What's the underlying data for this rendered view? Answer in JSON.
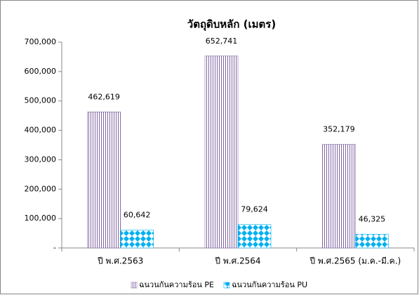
{
  "chart_data": {
    "type": "bar",
    "title": "วัตถุดิบหลัก (เมตร)",
    "categories": [
      "ปี พ.ศ.2563",
      "ปี พ.ศ.2564",
      "ปี พ.ศ.2565 (ม.ค.-มี.ค.)"
    ],
    "series": [
      {
        "name": "ฉนวนกันความร้อน PE",
        "color": "#8064a2",
        "values": [
          462619,
          652741,
          352179
        ],
        "value_labels": [
          "462,619",
          "652,741",
          "352,179"
        ]
      },
      {
        "name": "ฉนวนกันความร้อน PU",
        "color": "#00b0f0",
        "values": [
          60642,
          79624,
          46325
        ],
        "value_labels": [
          "60,642",
          "79,624",
          "46,325"
        ]
      }
    ],
    "ylim": [
      0,
      700000
    ],
    "yticks": [
      {
        "value": 0,
        "label": "-"
      },
      {
        "value": 100000,
        "label": "100,000"
      },
      {
        "value": 200000,
        "label": "200,000"
      },
      {
        "value": 300000,
        "label": "300,000"
      },
      {
        "value": 400000,
        "label": "400,000"
      },
      {
        "value": 500000,
        "label": "500,000"
      },
      {
        "value": 600000,
        "label": "600,000"
      },
      {
        "value": 700000,
        "label": "700,000"
      }
    ],
    "grid": false,
    "legend": "bottom"
  }
}
